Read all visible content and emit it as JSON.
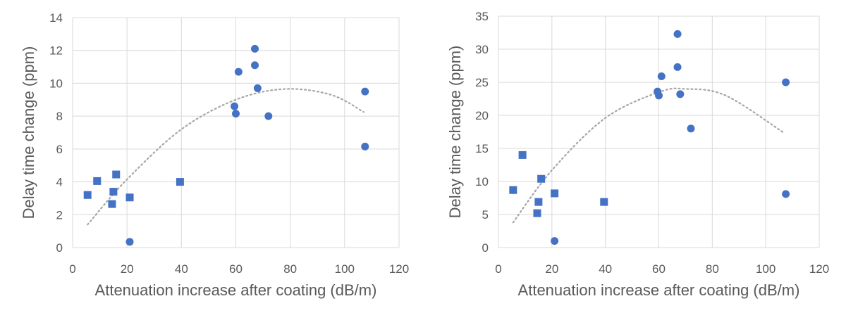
{
  "chart_data": [
    {
      "type": "scatter",
      "xlabel": "Attenuation increase after coating (dB/m)",
      "ylabel": "Delay time change (ppm)",
      "xlim": [
        0,
        120
      ],
      "ylim": [
        0,
        14
      ],
      "xticks": [
        0,
        20,
        40,
        60,
        80,
        100,
        120
      ],
      "yticks": [
        0,
        2,
        4,
        6,
        8,
        10,
        12,
        14
      ],
      "grid": true,
      "legend": "none",
      "marker_color": "#4472c4",
      "series": [
        {
          "marker": "square",
          "points": [
            [
              5.5,
              3.2
            ],
            [
              9,
              4.05
            ],
            [
              14.5,
              2.65
            ],
            [
              15,
              3.4
            ],
            [
              16,
              4.45
            ],
            [
              21,
              3.05
            ],
            [
              39.5,
              4.0
            ]
          ]
        },
        {
          "marker": "circle",
          "points": [
            [
              21,
              0.35
            ],
            [
              59.5,
              8.6
            ],
            [
              60,
              8.15
            ],
            [
              61,
              10.7
            ],
            [
              67,
              12.1
            ],
            [
              67,
              11.1
            ],
            [
              68,
              9.7
            ],
            [
              72,
              8.0
            ],
            [
              107.5,
              9.5
            ],
            [
              107.5,
              6.15
            ]
          ]
        }
      ],
      "trendline": {
        "type": "polynomial",
        "color": "#a6a6a6",
        "style": "dotted",
        "points": [
          [
            5.5,
            1.4
          ],
          [
            20,
            4.15
          ],
          [
            40,
            7.2
          ],
          [
            60,
            9.0
          ],
          [
            78,
            9.65
          ],
          [
            95,
            9.3
          ],
          [
            107,
            8.25
          ]
        ]
      }
    },
    {
      "type": "scatter",
      "xlabel": "Attenuation increase after coating (dB/m)",
      "ylabel": "Delay time change (ppm)",
      "xlim": [
        0,
        120
      ],
      "ylim": [
        0,
        35
      ],
      "xticks": [
        0,
        20,
        40,
        60,
        80,
        100,
        120
      ],
      "yticks": [
        0,
        5,
        10,
        15,
        20,
        25,
        30,
        35
      ],
      "grid": true,
      "legend": "none",
      "marker_color": "#4472c4",
      "series": [
        {
          "marker": "square",
          "points": [
            [
              5.5,
              8.7
            ],
            [
              9,
              14.0
            ],
            [
              14.5,
              5.2
            ],
            [
              15,
              6.9
            ],
            [
              16,
              10.4
            ],
            [
              21,
              8.2
            ],
            [
              39.5,
              6.9
            ]
          ]
        },
        {
          "marker": "circle",
          "points": [
            [
              21,
              1.0
            ],
            [
              59.5,
              23.6
            ],
            [
              60,
              23.0
            ],
            [
              61,
              25.9
            ],
            [
              67,
              32.3
            ],
            [
              67,
              27.3
            ],
            [
              68,
              23.2
            ],
            [
              72,
              18.0
            ],
            [
              107.5,
              25.0
            ],
            [
              107.5,
              8.1
            ]
          ]
        }
      ],
      "trendline": {
        "type": "polynomial",
        "color": "#a6a6a6",
        "style": "dotted",
        "points": [
          [
            5.5,
            3.8
          ],
          [
            20,
            11.7
          ],
          [
            40,
            19.6
          ],
          [
            60,
            23.5
          ],
          [
            70,
            24.0
          ],
          [
            85,
            23.0
          ],
          [
            107,
            17.3
          ]
        ]
      }
    }
  ]
}
